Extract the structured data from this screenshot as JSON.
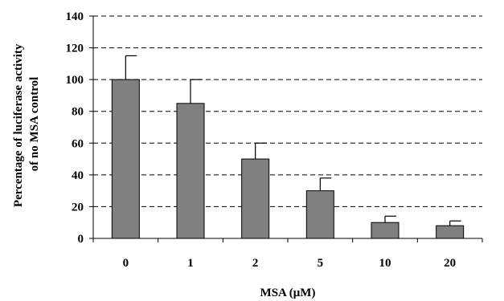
{
  "chart_data": {
    "type": "bar",
    "categories": [
      "0",
      "1",
      "2",
      "5",
      "10",
      "20"
    ],
    "values": [
      100,
      85,
      50,
      30,
      10,
      8
    ],
    "error_plus": [
      15,
      15,
      10,
      8,
      4,
      3
    ],
    "xlabel": "MSA (μM)",
    "ylabel_lines": [
      "Percentage of luciferase activity",
      "of no MSA control"
    ],
    "ylim": [
      0,
      140
    ],
    "yticks": [
      0,
      20,
      40,
      60,
      80,
      100,
      120,
      140
    ],
    "grid": "dashed horizontal",
    "bar_color": "#808080"
  }
}
